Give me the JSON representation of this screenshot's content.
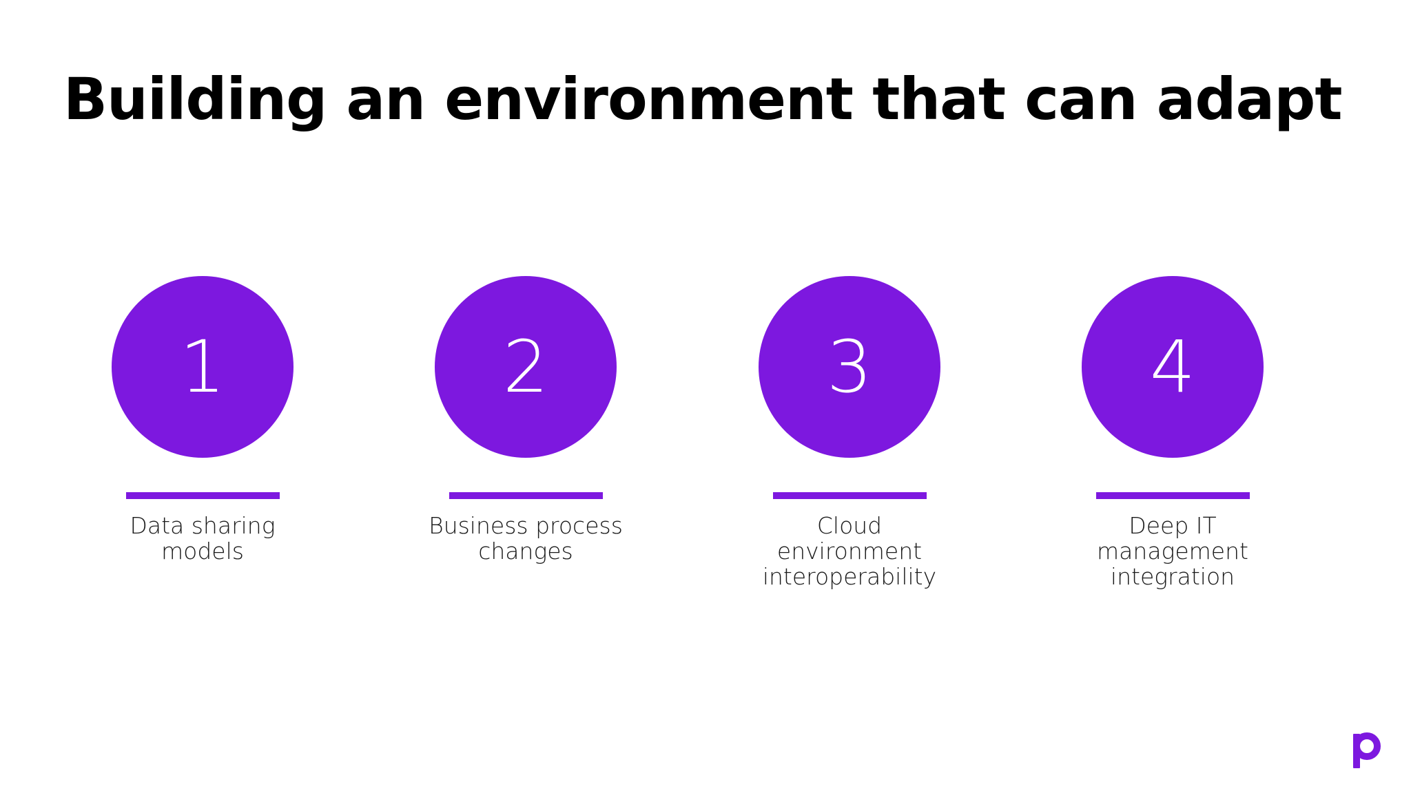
{
  "slide": {
    "title": "Building an environment that can adapt",
    "steps": [
      {
        "number": "1",
        "label": "Data sharing\nmodels"
      },
      {
        "number": "2",
        "label": "Business process\nchanges"
      },
      {
        "number": "3",
        "label": "Cloud\nenvironment\ninteroperability"
      },
      {
        "number": "4",
        "label": "Deep IT\nmanagement\nintegration"
      }
    ],
    "logo_icon": "p-logo-icon"
  },
  "colors": {
    "accent": "#7d18df",
    "text": "#000000",
    "background": "#ffffff"
  }
}
